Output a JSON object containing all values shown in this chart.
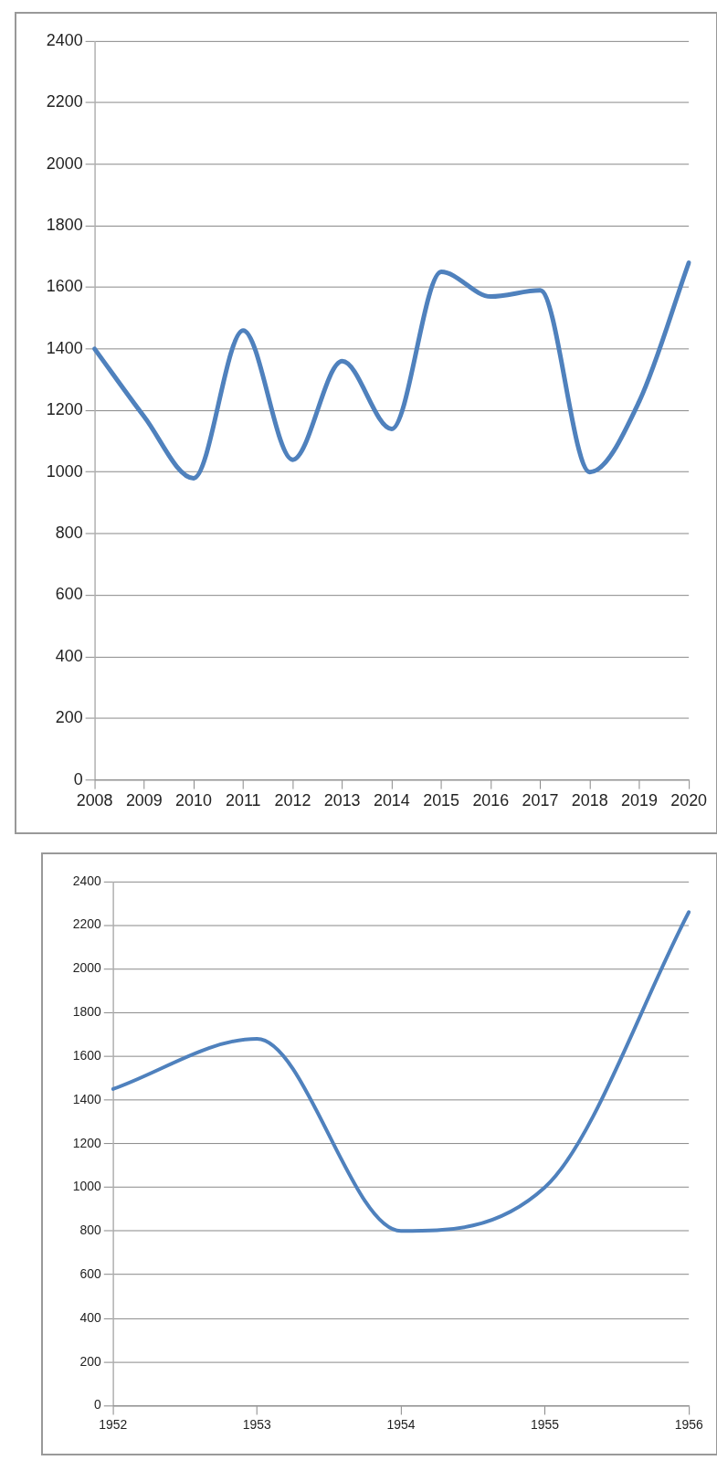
{
  "chart_data": [
    {
      "type": "line",
      "categories": [
        "2008",
        "2009",
        "2010",
        "2011",
        "2012",
        "2013",
        "2014",
        "2015",
        "2016",
        "2017",
        "2018",
        "2019",
        "2020"
      ],
      "series": [
        {
          "color": "#4f81bd",
          "values": [
            1400,
            1180,
            980,
            1460,
            1040,
            1360,
            1140,
            1650,
            1570,
            1590,
            1000,
            1230,
            1680
          ]
        }
      ],
      "ylim": [
        0,
        2400
      ],
      "yticks": [
        0,
        200,
        400,
        600,
        800,
        1000,
        1200,
        1400,
        1600,
        1800,
        2000,
        2200,
        2400
      ],
      "grid": "y"
    },
    {
      "type": "line",
      "categories": [
        "1952",
        "1953",
        "1954",
        "1955",
        "1956"
      ],
      "series": [
        {
          "color": "#4f81bd",
          "values": [
            1450,
            1680,
            800,
            1000,
            2260
          ]
        }
      ],
      "ylim": [
        0,
        2400
      ],
      "yticks": [
        0,
        200,
        400,
        600,
        800,
        1000,
        1200,
        1400,
        1600,
        1800,
        2000,
        2200,
        2400
      ],
      "grid": "y"
    }
  ]
}
